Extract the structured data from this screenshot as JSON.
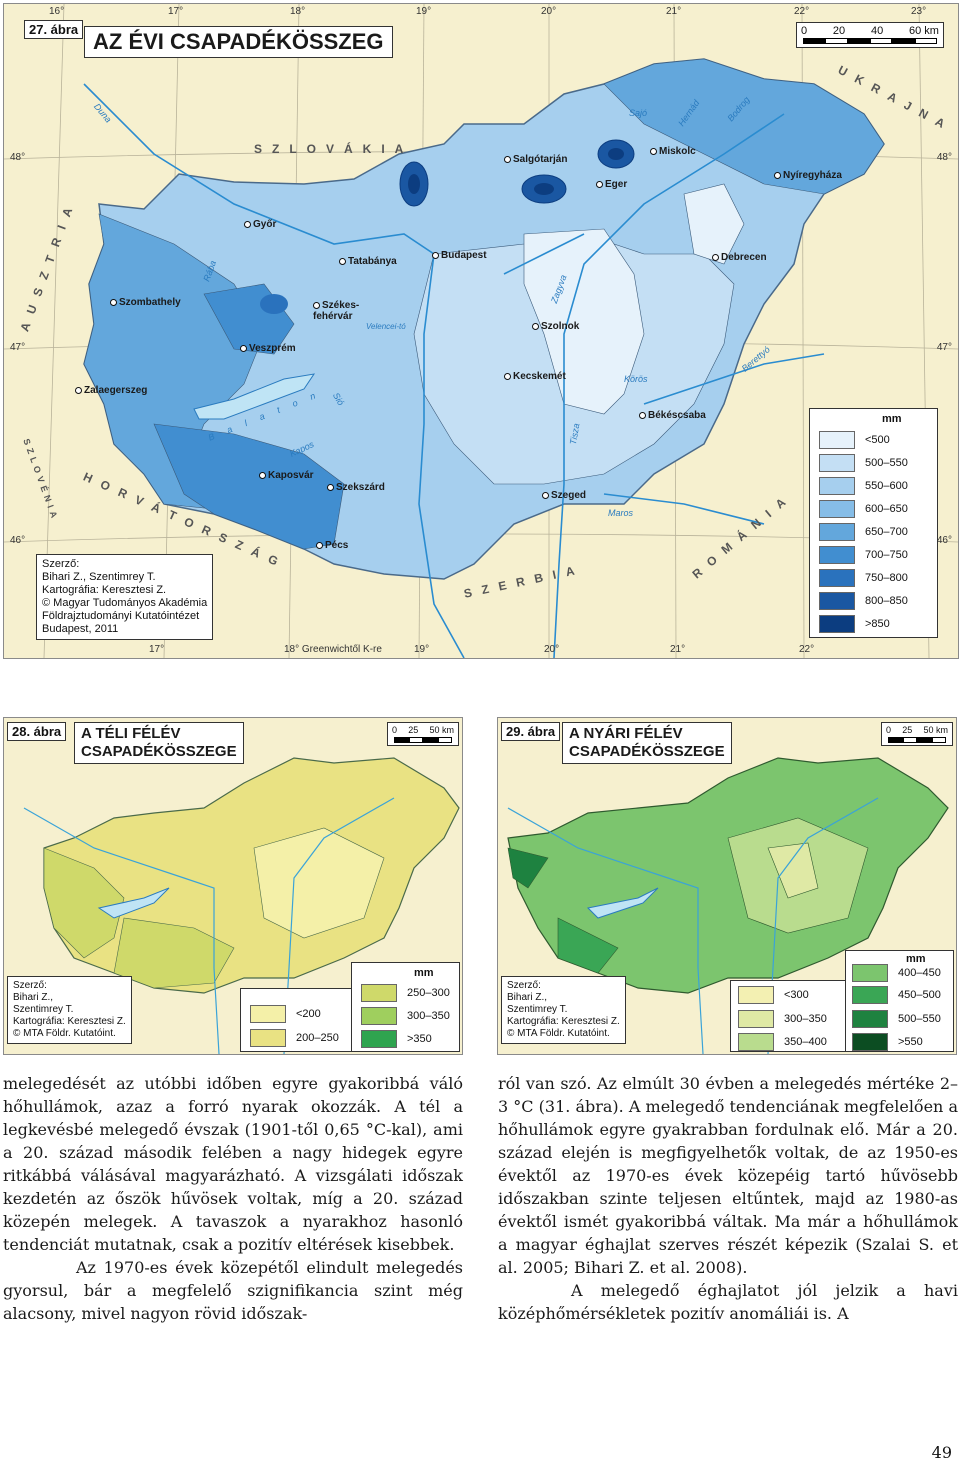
{
  "map27": {
    "fig_label": "27. ábra",
    "title": "AZ ÉVI CSAPADÉKÖSSZEG",
    "scale_labels": [
      "0",
      "20",
      "40",
      "60 km"
    ],
    "deg_top": [
      "16°",
      "17°",
      "18°",
      "19°",
      "20°",
      "21°",
      "22°",
      "23°"
    ],
    "deg_bottom": [
      "17°",
      "18° Greenwichtől K-re",
      "19°",
      "20°",
      "21°",
      "22°"
    ],
    "lat_labels": [
      "48°",
      "47°",
      "46°"
    ],
    "cities": [
      "Győr",
      "Tatabánya",
      "Budapest",
      "Salgótarján",
      "Eger",
      "Miskolc",
      "Nyíregyháza",
      "Debrecen",
      "Szombathely",
      "Székes-fehérvár",
      "Veszprém",
      "Szolnok",
      "Kecskemét",
      "Zalaegerszeg",
      "Békéscsaba",
      "Kaposvár",
      "Szekszárd",
      "Szeged",
      "Pécs"
    ],
    "countries": [
      "SZLOVÁKIA",
      "UKRAJNA",
      "AUSZTRIA",
      "SZLOVÉNIA",
      "HORVÁTORSZÁG",
      "SZERBIA",
      "ROMÁNIA"
    ],
    "rivers": [
      "Duna",
      "Rába",
      "Tisza",
      "Körös",
      "Maros",
      "Sajó",
      "Hernád",
      "Bodrog",
      "Zagyva",
      "Balaton",
      "Velencei-tó",
      "Berettyó",
      "Kapos",
      "Sió"
    ],
    "legend": {
      "unit": "mm",
      "items": [
        {
          "label": "<500",
          "color": "#e6f2fb"
        },
        {
          "label": "500–550",
          "color": "#c4dff4"
        },
        {
          "label": "550–600",
          "color": "#a6cfee"
        },
        {
          "label": "600–650",
          "color": "#86bde7"
        },
        {
          "label": "650–700",
          "color": "#63a7dc"
        },
        {
          "label": "700–750",
          "color": "#418ed0"
        },
        {
          "label": "750–800",
          "color": "#2a72bd"
        },
        {
          "label": "800–850",
          "color": "#1a57a2"
        },
        {
          "label": ">850",
          "color": "#0c3d80"
        }
      ]
    },
    "credit": "Szerző:\nBihari Z., Szentimrey T.\nKartográfia: Keresztesi Z.\n© Magyar Tudományos Akadémia\nFöldrajztudományi Kutatóintézet\nBudapest, 2011"
  },
  "map28": {
    "fig_label": "28. ábra",
    "title": "A TÉLI FÉLÉV\nCSAPADÉKÖSSZEGE",
    "scale_labels": [
      "0",
      "25",
      "50 km"
    ],
    "legend": {
      "unit": "mm",
      "items": [
        {
          "label": "<200",
          "color": "#f4f0a8"
        },
        {
          "label": "200–250",
          "color": "#e9e283"
        },
        {
          "label": "250–300",
          "color": "#cfd96a"
        },
        {
          "label": "300–350",
          "color": "#9fcf5e"
        },
        {
          "label": ">350",
          "color": "#2fa44f"
        }
      ]
    },
    "credit": "Szerző:\nBihari Z.,\nSzentimrey T.\nKartográfia: Keresztesi Z.\n© MTA Földr. Kutatóint."
  },
  "map29": {
    "fig_label": "29. ábra",
    "title": "A NYÁRI FÉLÉV\nCSAPADÉKÖSSZEGE",
    "scale_labels": [
      "0",
      "25",
      "50 km"
    ],
    "legend": {
      "unit": "mm",
      "items": [
        {
          "label": "<300",
          "color": "#f3f0b2"
        },
        {
          "label": "300–350",
          "color": "#dfe9a5"
        },
        {
          "label": "350–400",
          "color": "#b9dc8e"
        },
        {
          "label": "400–450",
          "color": "#7cc56e"
        },
        {
          "label": "450–500",
          "color": "#3aa655"
        },
        {
          "label": "500–550",
          "color": "#1e8240"
        },
        {
          "label": ">550",
          "color": "#0c4d22"
        }
      ]
    },
    "credit": "Szerző:\nBihari Z.,\nSzentimrey T.\nKartográfia: Keresztesi Z.\n© MTA Földr. Kutatóint."
  },
  "text": {
    "left_p1": "melegedését az utóbbi időben egyre gyakoribbá váló hőhullámok, azaz a forró nyarak okozzák. A tél a legkevésbé melegedő évszak (1901-től 0,65 °C-kal), ami a 20. század második felében a nagy hidegek egyre ritkábbá válásával magyarázható. A vizsgálati időszak kezdetén az őszök hűvösek voltak, míg a 20. század közepén melegek. A tavaszok a nyarakhoz hasonló tendenciát mutatnak, csak a pozitív eltérések kisebbek.",
    "left_p2": "Az 1970-es évek közepétől elindult melegedés gyorsul, bár a megfelelő szignifikancia szint még alacsony, mivel nagyon rövid időszak-",
    "right_p1": "ról van szó. Az elmúlt 30 évben a melegedés mértéke 2–3 °C (31. ábra). A melegedő tendenciának megfelelően a hőhullámok egyre gyakrabban fordulnak elő. Már a 20. század elején is megfigyelhetők voltak, de az 1950-es évektől az 1970-es évek közepéig tartó hűvösebb időszakban szinte teljesen eltűntek, majd az 1980-as évektől ismét gyakoribbá váltak. Ma már a hőhullámok a magyar éghajlat szerves részét képezik (Szalai S. et al. 2005; Bihari Z. et al. 2008).",
    "right_p2": "A melegedő éghajlatot jól jelzik a havi középhőmérsékletek pozitív anomáliái is. A",
    "page_number": "49"
  }
}
